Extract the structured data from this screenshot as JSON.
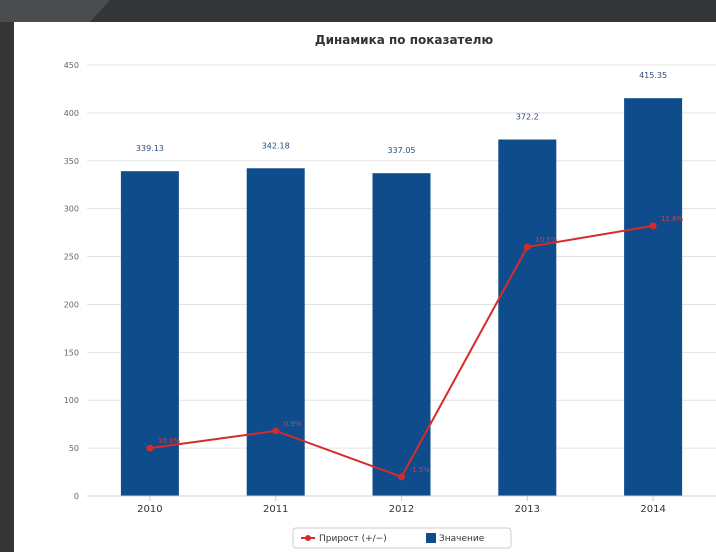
{
  "chart_data": {
    "type": "bar",
    "title": "Динамика по показателю",
    "categories": [
      "2010",
      "2011",
      "2012",
      "2013",
      "2014"
    ],
    "ylim": [
      0,
      450
    ],
    "yticks": [
      "0",
      "50",
      "100",
      "150",
      "200",
      "250",
      "300",
      "350",
      "400",
      "450"
    ],
    "grid": true,
    "legend_position": "bottom-center",
    "series": [
      {
        "name": "Значение",
        "type": "bar",
        "color": "#0e4c8c",
        "values": [
          339.13,
          342.18,
          337.05,
          372.2,
          415.35
        ],
        "labels": [
          "339.13",
          "342.18",
          "337.05",
          "372.2",
          "415.35"
        ]
      },
      {
        "name": "Прирост (+/−)",
        "type": "line",
        "color": "#d62b2b",
        "values": [
          50,
          68,
          20,
          260,
          282
        ],
        "labels": [
          "10.0%",
          "0.9%",
          "-1.5%",
          "10.5%",
          "11.6%"
        ]
      }
    ]
  }
}
